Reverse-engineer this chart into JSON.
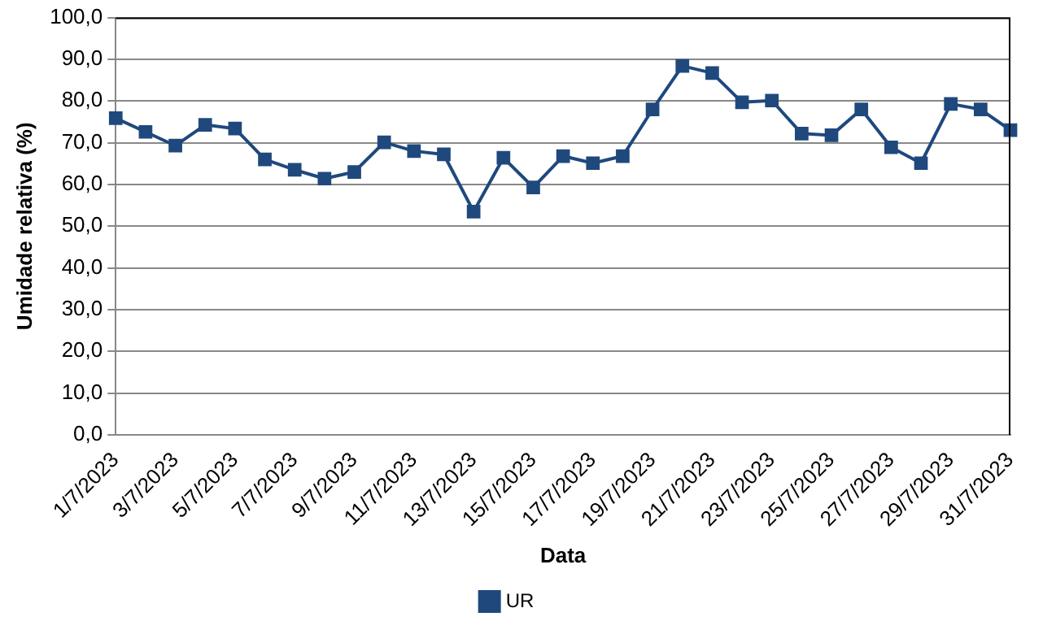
{
  "chart_data": {
    "type": "line",
    "xlabel": "Data",
    "ylabel": "Umidade relativa (%)",
    "categories": [
      "1/7/2023",
      null,
      "3/7/2023",
      null,
      "5/7/2023",
      null,
      "7/7/2023",
      null,
      "9/7/2023",
      null,
      "11/7/2023",
      null,
      "13/7/2023",
      null,
      "15/7/2023",
      null,
      "17/7/2023",
      null,
      "19/7/2023",
      null,
      "21/7/2023",
      null,
      "23/7/2023",
      null,
      "25/7/2023",
      null,
      "27/7/2023",
      null,
      "29/7/2023",
      null,
      "31/7/2023"
    ],
    "series": [
      {
        "name": "UR",
        "color": "#1f497d",
        "values": [
          75.9,
          72.6,
          69.3,
          74.3,
          73.4,
          66,
          63.5,
          61.4,
          63,
          70.1,
          68,
          67.2,
          53.5,
          66.4,
          59.3,
          66.8,
          65.1,
          66.8,
          78,
          88.4,
          86.7,
          79.7,
          80.1,
          72.2,
          71.8,
          78,
          68.9,
          65.1,
          79.3,
          78,
          73
        ]
      }
    ],
    "ylim": [
      0,
      100
    ],
    "yticks": [
      {
        "value": 0,
        "label": "0,0"
      },
      {
        "value": 10,
        "label": "10,0"
      },
      {
        "value": 20,
        "label": "20,0"
      },
      {
        "value": 30,
        "label": "30,0"
      },
      {
        "value": 40,
        "label": "40,0"
      },
      {
        "value": 50,
        "label": "50,0"
      },
      {
        "value": 60,
        "label": "60,0"
      },
      {
        "value": 70,
        "label": "70,0"
      },
      {
        "value": 80,
        "label": "80,0"
      },
      {
        "value": 90,
        "label": "90,0"
      },
      {
        "value": 100,
        "label": "100,0"
      }
    ],
    "grid": "y",
    "legend": "bottom",
    "marker": "square",
    "line_style": "solid"
  }
}
